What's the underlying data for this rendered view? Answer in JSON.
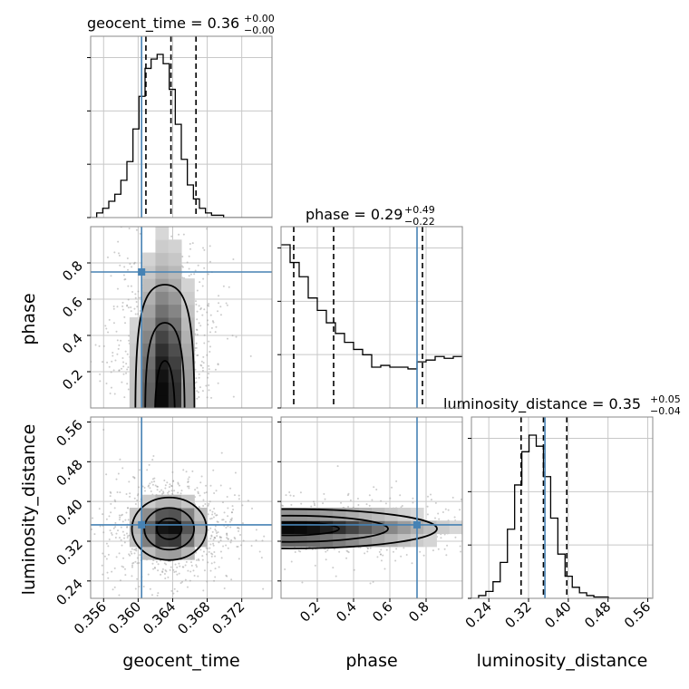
{
  "chart_data": {
    "type": "corner",
    "truth_color": "#4682b4",
    "truths": {
      "geocent_time": 0.3604,
      "phase": 0.75,
      "luminosity_distance": 0.353
    },
    "parameters": [
      {
        "name": "geocent_time",
        "axis_label": "geocent_time",
        "title_main": "geocent_time = 0.36",
        "title_plus": "+0.00",
        "title_minus": "−0.00",
        "range": [
          0.3545,
          0.3755
        ],
        "ticks": [
          0.356,
          0.36,
          0.364,
          0.368,
          0.372
        ],
        "tick_labels": [
          "0.356",
          "0.360",
          "0.364",
          "0.368",
          "0.372"
        ],
        "quantiles": [
          0.3609,
          0.3638,
          0.3667
        ],
        "hist_x0": 0.3545,
        "hist_dx": 0.0007,
        "hist": [
          0,
          2,
          4,
          7,
          10,
          16,
          24,
          38,
          52,
          64,
          68,
          70,
          66,
          55,
          40,
          25,
          14,
          8,
          4,
          2,
          1,
          1,
          0,
          0,
          0,
          0,
          0,
          0,
          0,
          0
        ]
      },
      {
        "name": "phase",
        "axis_label": "phase",
        "title_main": "phase = 0.29",
        "title_plus": "+0.49",
        "title_minus": "−0.22",
        "range": [
          0.0,
          1.0
        ],
        "ticks": [
          0.2,
          0.4,
          0.6,
          0.8
        ],
        "tick_labels": [
          "0.2",
          "0.4",
          "0.6",
          "0.8"
        ],
        "quantiles": [
          0.07,
          0.29,
          0.78
        ],
        "hist_x0": 0.0,
        "hist_dx": 0.05,
        "hist": [
          0.92,
          0.82,
          0.74,
          0.62,
          0.55,
          0.48,
          0.42,
          0.37,
          0.33,
          0.3,
          0.23,
          0.24,
          0.23,
          0.23,
          0.22,
          0.26,
          0.27,
          0.29,
          0.28,
          0.29
        ]
      },
      {
        "name": "luminosity_distance",
        "axis_label": "luminosity_distance",
        "title_main": "luminosity_distance = 0.35",
        "title_plus": "+0.05",
        "title_minus": "−0.04",
        "range": [
          0.205,
          0.57
        ],
        "ticks": [
          0.24,
          0.32,
          0.4,
          0.48,
          0.56
        ],
        "tick_labels": [
          "0.24",
          "0.32",
          "0.40",
          "0.48",
          "0.56"
        ],
        "quantiles": [
          0.305,
          0.35,
          0.397
        ],
        "hist_x0": 0.205,
        "hist_dx": 0.0145,
        "hist": [
          0,
          2,
          5,
          12,
          26,
          50,
          82,
          106,
          118,
          110,
          88,
          58,
          32,
          16,
          8,
          4,
          2,
          1,
          1,
          0,
          0,
          0,
          0,
          0,
          0
        ]
      }
    ],
    "density_panels": [
      {
        "x": "geocent_time",
        "y": "phase",
        "peak": [
          0.3631,
          0.05
        ],
        "spread": [
          0.0019,
          0.12
        ],
        "extent_top": 0.98
      },
      {
        "x": "geocent_time",
        "y": "luminosity_distance",
        "peak": [
          0.3636,
          0.345
        ],
        "spread": [
          0.0024,
          0.035
        ]
      },
      {
        "x": "phase",
        "y": "luminosity_distance",
        "peak": [
          0.05,
          0.345
        ],
        "spread": [
          0.45,
          0.022
        ]
      }
    ]
  }
}
